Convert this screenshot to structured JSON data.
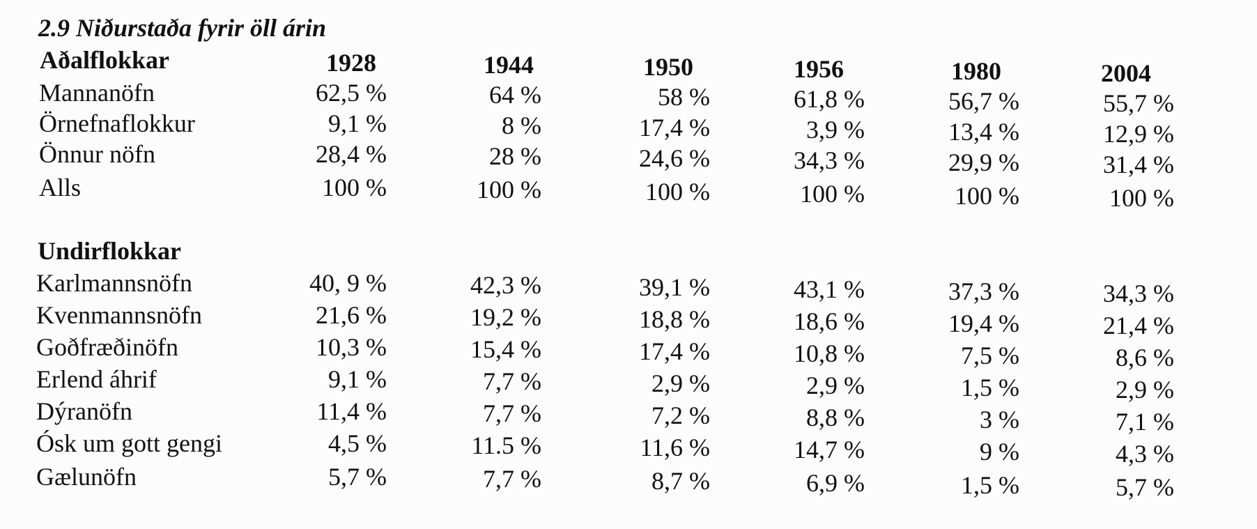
{
  "title": "2.9 Niðurstaða fyrir öll árin",
  "main": {
    "heading": "Aðalflokkar",
    "years": [
      "1928",
      "1944",
      "1950",
      "1956",
      "1980",
      "2004"
    ],
    "rows": [
      {
        "label": "Mannanöfn",
        "cells": [
          "62,5 %",
          "64 %",
          "58 %",
          "61,8 %",
          "56,7 %",
          "55,7 %"
        ]
      },
      {
        "label": "Örnefnaflokkur",
        "cells": [
          "9,1 %",
          "8 %",
          "17,4 %",
          "3,9 %",
          "13,4 %",
          "12,9 %"
        ]
      },
      {
        "label": "Önnur nöfn",
        "cells": [
          "28,4 %",
          "28 %",
          "24,6 %",
          "34,3 %",
          "29,9 %",
          "31,4 %"
        ]
      },
      {
        "label": "Alls",
        "cells": [
          "100 %",
          "100 %",
          "100 %",
          "100 %",
          "100 %",
          "100 %"
        ]
      }
    ]
  },
  "sub": {
    "heading": "Undirflokkar",
    "rows": [
      {
        "label": "Karlmannsnöfn",
        "cells": [
          "40, 9 %",
          "42,3 %",
          "39,1 %",
          "43,1 %",
          "37,3 %",
          "34,3 %"
        ]
      },
      {
        "label": "Kvenmannsnöfn",
        "cells": [
          "21,6 %",
          "19,2 %",
          "18,8 %",
          "18,6 %",
          "19,4 %",
          "21,4 %"
        ]
      },
      {
        "label": "Goðfræðinöfn",
        "cells": [
          "10,3 %",
          "15,4 %",
          "17,4 %",
          "10,8 %",
          "7,5 %",
          "8,6 %"
        ]
      },
      {
        "label": "Erlend áhrif",
        "cells": [
          "9,1 %",
          "7,7 %",
          "2,9 %",
          "2,9 %",
          "1,5 %",
          "2,9 %"
        ]
      },
      {
        "label": "Dýranöfn",
        "cells": [
          "11,4 %",
          "7,7 %",
          "7,2 %",
          "8,8 %",
          "3 %",
          "7,1 %"
        ]
      },
      {
        "label": "Ósk um gott gengi",
        "cells": [
          "4,5 %",
          "11.5 %",
          "11,6 %",
          "14,7 %",
          "9 %",
          "4,3 %"
        ]
      },
      {
        "label": "Gælunöfn",
        "cells": [
          "5,7 %",
          "7,7 %",
          "8,7 %",
          "6,9 %",
          "1,5 %",
          "5,7 %"
        ]
      }
    ]
  }
}
